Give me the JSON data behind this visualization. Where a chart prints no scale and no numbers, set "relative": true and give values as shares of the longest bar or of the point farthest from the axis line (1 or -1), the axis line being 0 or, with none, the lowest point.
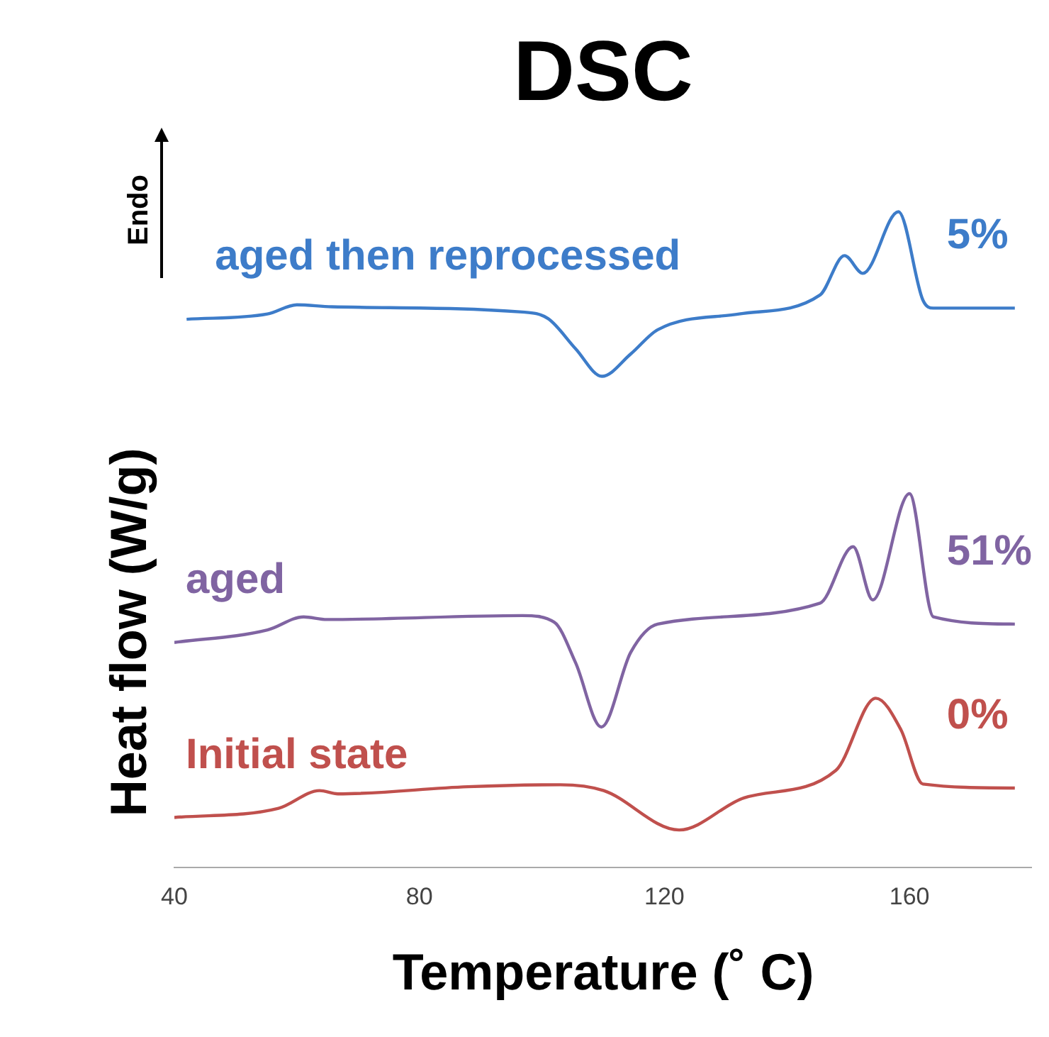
{
  "chart_data": {
    "type": "line",
    "title": "DSC",
    "xlabel": "Temperature (˚ C)",
    "ylabel": "Heat flow (W/g)",
    "relative": true,
    "xlim": [
      40,
      180
    ],
    "xticks": [
      40,
      80,
      120,
      160
    ],
    "grid": false,
    "legend": false,
    "marker": "none",
    "line_style": "solid",
    "annotations": [
      "Endo",
      "5%",
      "51%",
      "0%"
    ],
    "series": [
      {
        "name": "aged then reprocessed",
        "color": "#3d7cc9",
        "x": [
          42,
          55.2,
          60,
          65.7,
          96.8,
          101,
          105.5,
          109.8,
          114.5,
          118.9,
          132.2,
          145.4,
          149.4,
          152.4,
          158.2,
          162.2,
          163.9,
          177.2
        ],
        "values": [
          0.836,
          0.844,
          0.858,
          0.855,
          0.847,
          0.837,
          0.791,
          0.749,
          0.783,
          0.82,
          0.844,
          0.873,
          0.933,
          0.906,
          1,
          0.865,
          0.853,
          0.853
        ]
      },
      {
        "name": "aged",
        "color": "#8064a2",
        "x": [
          40,
          55.2,
          61.1,
          64.9,
          96.8,
          102,
          105.5,
          109.7,
          114.5,
          118.9,
          145.4,
          150.8,
          154,
          160,
          163.9,
          177.2
        ],
        "values": [
          0.343,
          0.362,
          0.382,
          0.378,
          0.384,
          0.374,
          0.312,
          0.214,
          0.328,
          0.371,
          0.403,
          0.489,
          0.408,
          0.57,
          0.382,
          0.371
        ]
      },
      {
        "name": "Initial state",
        "color": "#c0504d",
        "x": [
          40,
          57,
          63.7,
          66.7,
          87.9,
          103,
          110.1,
          122.4,
          133,
          148,
          154.5,
          158.6,
          162.2,
          177.2
        ],
        "values": [
          0.076,
          0.09,
          0.117,
          0.112,
          0.123,
          0.126,
          0.117,
          0.057,
          0.106,
          0.148,
          0.258,
          0.21,
          0.127,
          0.121
        ]
      }
    ]
  }
}
